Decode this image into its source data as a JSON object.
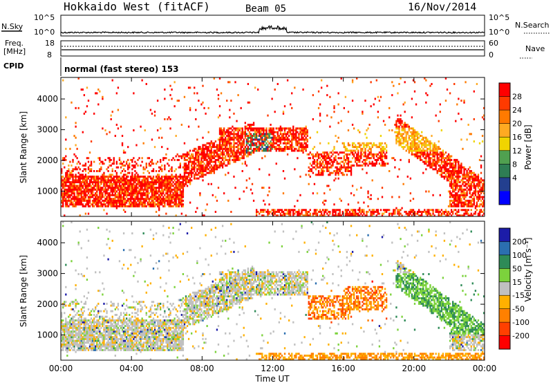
{
  "header": {
    "station": "Hokkaido West (fitACF)",
    "beam": "Beam 05",
    "date": "16/Nov/2014"
  },
  "top_panels": {
    "nsky_label": "N.Sky",
    "nsearch_label": "N.Search",
    "noise_ticks": [
      "10^5",
      "10^0"
    ],
    "freq_label_1": "Freq.",
    "freq_label_2": "[MHz]",
    "freq_ticks": [
      "18",
      "8"
    ],
    "nave_label": "Nave",
    "nave_ticks": [
      "60",
      "0"
    ],
    "cpid_label": "CPID",
    "cpid_text": "normal (fast stereo) 153"
  },
  "chart_data": [
    {
      "type": "heatmap",
      "name": "power",
      "ylabel": "Slant Range [km]",
      "xlabel": "",
      "yticks": [
        "4000",
        "3000",
        "2000",
        "1000"
      ],
      "ytick_values": [
        4000,
        3000,
        2000,
        1000
      ],
      "ylim": [
        180,
        4700
      ],
      "colorbar": {
        "label": "Power [dB]",
        "ticks": [
          "28",
          "24",
          "20",
          "16",
          "12",
          "8",
          "4"
        ],
        "colors": [
          "#ff0000",
          "#ff3a00",
          "#ff7a00",
          "#ffaa22",
          "#f0d400",
          "#50a050",
          "#2e7d54",
          "#233f8f",
          "#0000ff"
        ]
      }
    },
    {
      "type": "heatmap",
      "name": "velocity",
      "ylabel": "Slant Range [km]",
      "xlabel": "Time UT",
      "yticks": [
        "4000",
        "3000",
        "2000",
        "1000"
      ],
      "ytick_values": [
        4000,
        3000,
        2000,
        1000
      ],
      "ylim": [
        180,
        4700
      ],
      "colorbar": {
        "label": "Velocity [m s⁻¹]",
        "ticks": [
          "200",
          "100",
          "50",
          "15",
          "-15",
          "-50",
          "-100",
          "-200"
        ],
        "colors": [
          "#1c1ca8",
          "#2b6fb0",
          "#2e8b57",
          "#7cd23c",
          "#c0c0c0",
          "#ffb000",
          "#ff8000",
          "#ff4000",
          "#ff0000"
        ]
      }
    }
  ],
  "time_axis": {
    "ticks": [
      "00:00",
      "04:00",
      "08:00",
      "12:00",
      "16:00",
      "20:00",
      "00:00"
    ],
    "tick_hours": [
      0,
      4,
      8,
      12,
      16,
      20,
      24
    ],
    "label": "Time UT"
  }
}
